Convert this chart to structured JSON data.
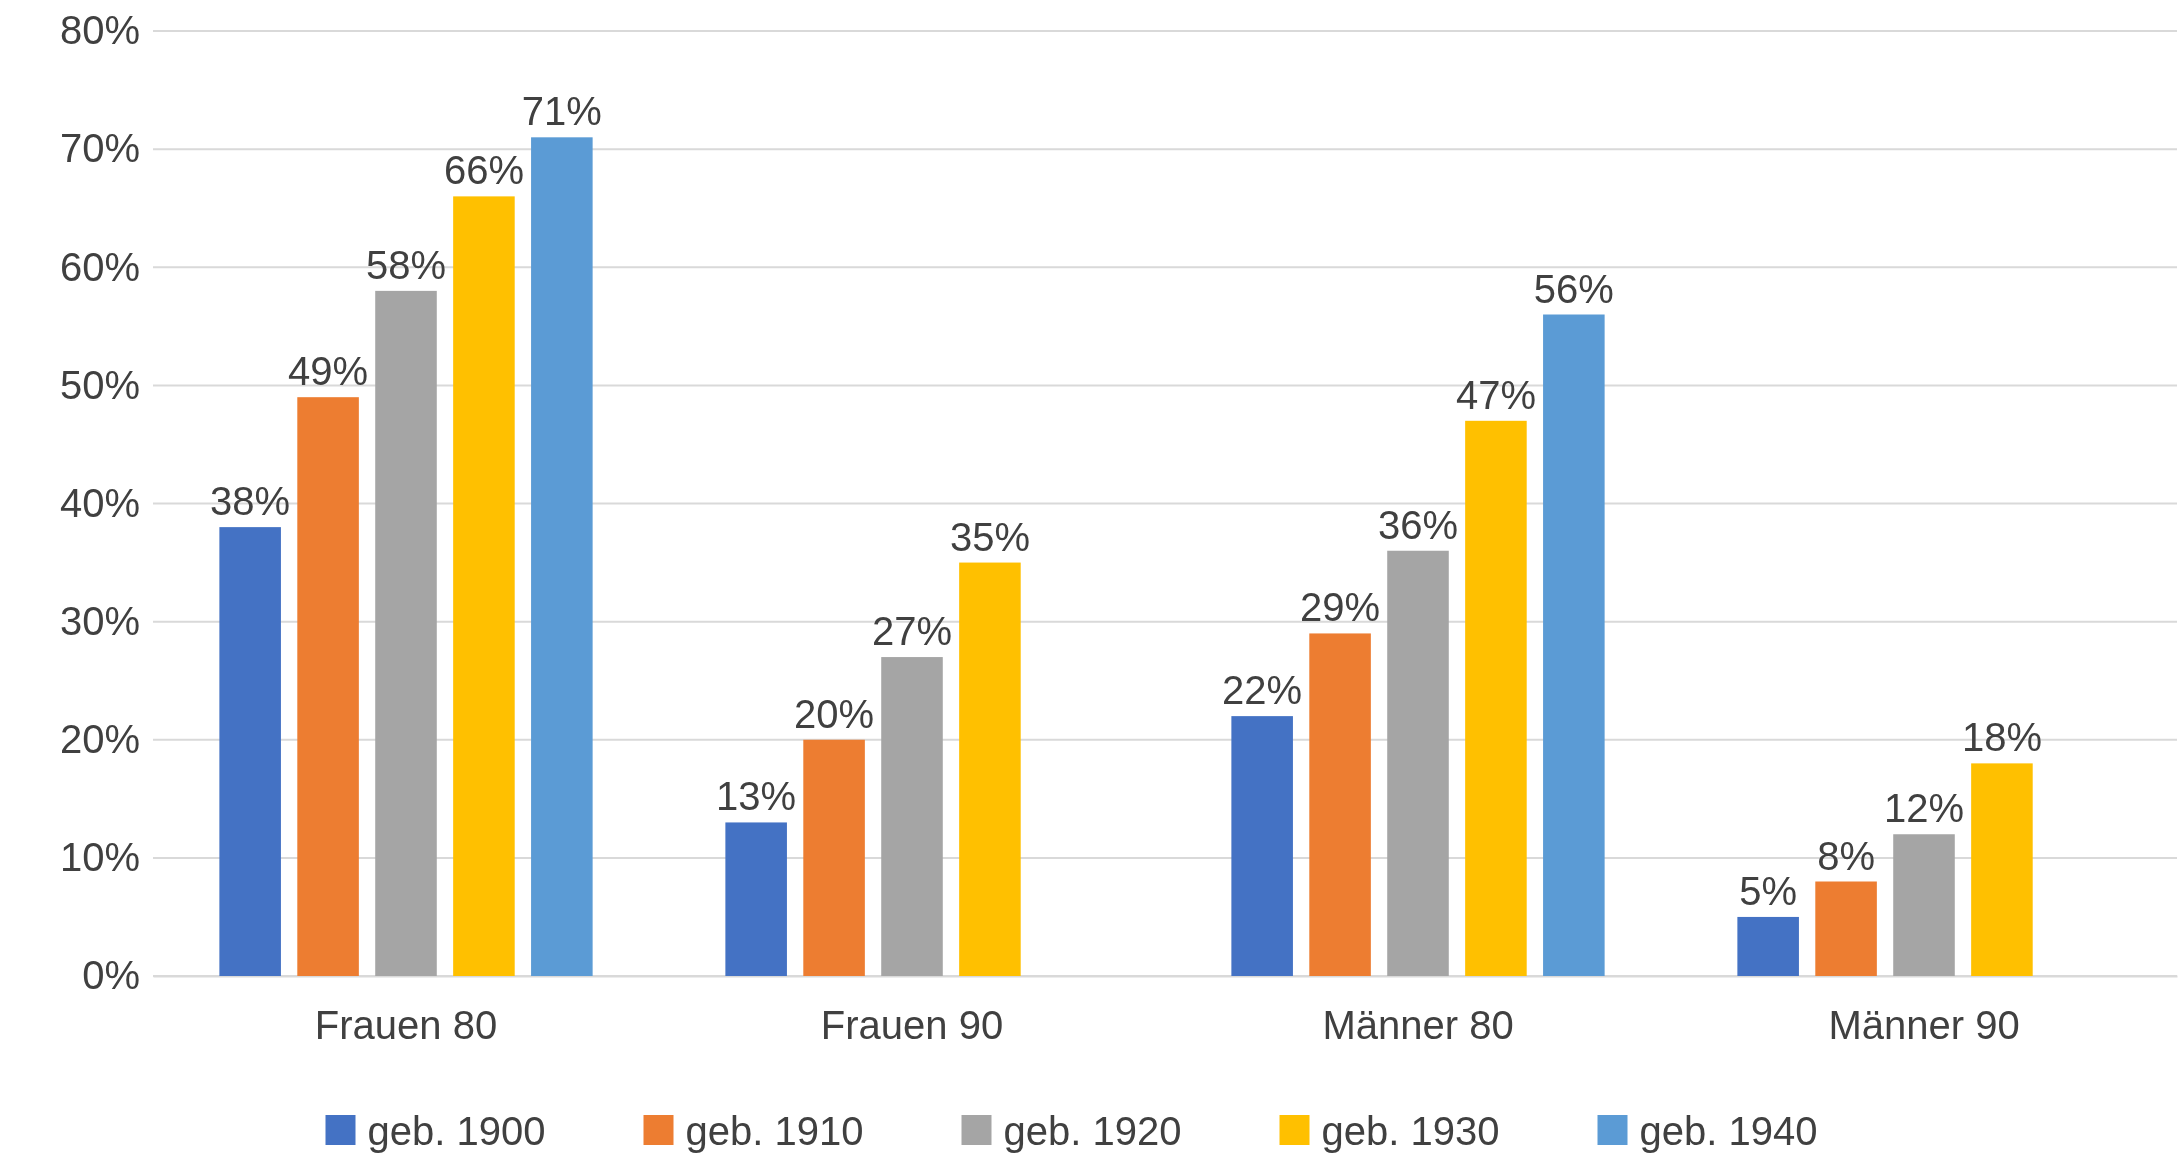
{
  "chart_data": {
    "type": "bar",
    "categories": [
      "Frauen 80",
      "Frauen 90",
      "Männer 80",
      "Männer 90"
    ],
    "series": [
      {
        "name": "geb. 1900",
        "color": "#4472c4",
        "values": [
          38,
          13,
          22,
          5
        ],
        "value_labels": [
          "38%",
          "13%",
          "22%",
          "5%"
        ]
      },
      {
        "name": "geb. 1910",
        "color": "#ed7d31",
        "values": [
          49,
          20,
          29,
          8
        ],
        "value_labels": [
          "49%",
          "20%",
          "29%",
          "8%"
        ]
      },
      {
        "name": "geb. 1920",
        "color": "#a5a5a5",
        "values": [
          58,
          27,
          36,
          12
        ],
        "value_labels": [
          "58%",
          "27%",
          "36%",
          "12%"
        ]
      },
      {
        "name": "geb. 1930",
        "color": "#ffc000",
        "values": [
          66,
          35,
          47,
          18
        ],
        "value_labels": [
          "66%",
          "35%",
          "47%",
          "18%"
        ]
      },
      {
        "name": "geb. 1940",
        "color": "#5b9bd5",
        "values": [
          71,
          null,
          56,
          null
        ],
        "value_labels": [
          "71%",
          null,
          "56%",
          null
        ]
      }
    ],
    "ylim": [
      0,
      80
    ],
    "yticks": [
      {
        "value": 0,
        "label": "0%"
      },
      {
        "value": 10,
        "label": "10%"
      },
      {
        "value": 20,
        "label": "20%"
      },
      {
        "value": 30,
        "label": "30%"
      },
      {
        "value": 40,
        "label": "40%"
      },
      {
        "value": 50,
        "label": "50%"
      },
      {
        "value": 60,
        "label": "60%"
      },
      {
        "value": 70,
        "label": "70%"
      },
      {
        "value": 80,
        "label": "80%"
      }
    ],
    "grid": "y",
    "legend": "bottom"
  }
}
